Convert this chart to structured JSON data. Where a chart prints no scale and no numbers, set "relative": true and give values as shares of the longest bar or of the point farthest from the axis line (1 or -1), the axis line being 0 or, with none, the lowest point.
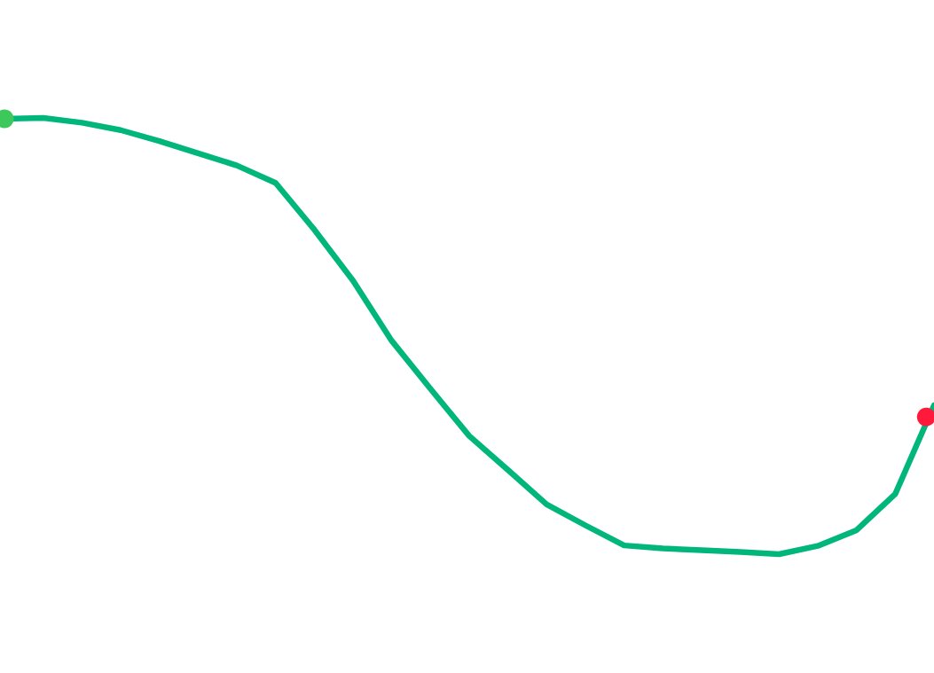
{
  "chart_data": {
    "type": "line",
    "relative": true,
    "marker": "none",
    "line_style": "solid",
    "categories": [
      null,
      null,
      null,
      null,
      null,
      null,
      null,
      null,
      null,
      null,
      null,
      null,
      null,
      null,
      null,
      null,
      null,
      null,
      null,
      null,
      null,
      null,
      null,
      null,
      null
    ],
    "series": [
      {
        "color": "#00b67a",
        "values": [
          0.998,
          1,
          0.989,
          0.972,
          0.947,
          0.919,
          0.891,
          0.851,
          0.744,
          0.627,
          0.489,
          0.379,
          0.271,
          0.193,
          0.114,
          0.066,
          0.02,
          0.013,
          0.009,
          0.005,
          0,
          0.019,
          0.055,
          0.138,
          0.341
        ]
      }
    ]
  }
}
